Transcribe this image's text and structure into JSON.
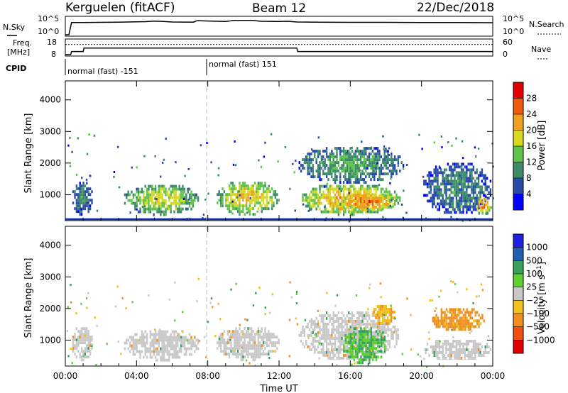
{
  "header": {
    "station": "Kerguelen (fitACF)",
    "beam": "Beam 12",
    "date": "22/Dec/2018"
  },
  "nsky_panel": {
    "left_label": "N.Sky",
    "right_label": "N.Search",
    "left_ticks": [
      "10^5",
      "10^0"
    ],
    "right_ticks": [
      "10^5",
      "10^0"
    ]
  },
  "freq_panel": {
    "left_label_line1": "Freq.",
    "left_label_line2": "[MHz]",
    "left_ticks": [
      "18",
      "8"
    ],
    "right_label": "Nave",
    "right_ticks": [
      "60",
      "0"
    ]
  },
  "cpid": {
    "label": "CPID",
    "segments": [
      {
        "text": "normal (fast) -151",
        "start_hour": 0
      },
      {
        "text": "normal (fast) 151",
        "start_hour": 8
      }
    ]
  },
  "colors": {
    "ground_scatter": "#c8c8c8",
    "power_scale": [
      "#0000ff",
      "#2a4aa8",
      "#3c8a6a",
      "#5fc24a",
      "#d8d820",
      "#f0a020",
      "#f05a10",
      "#e00000"
    ],
    "velocity_scale": [
      "#2020e0",
      "#2060b0",
      "#3aa060",
      "#60d030",
      "#c8c8c8",
      "#f0c020",
      "#f09020",
      "#f05010",
      "#e00000"
    ]
  },
  "chart_data": [
    {
      "type": "line",
      "panel": "noise",
      "x": [
        0,
        0.2,
        0.35,
        1,
        3,
        4.5,
        5.0,
        5.5,
        6,
        7.2,
        7.4,
        8,
        9,
        9.5,
        10.5,
        11,
        12,
        12.5,
        13,
        14,
        16,
        18,
        20,
        22,
        24
      ],
      "series": [
        {
          "name": "N.Sky",
          "values": [
            0.0,
            0.0,
            0.72,
            0.72,
            0.74,
            0.77,
            0.8,
            0.78,
            0.75,
            0.74,
            0.83,
            0.81,
            0.78,
            0.84,
            0.84,
            0.79,
            0.78,
            0.79,
            0.75,
            0.74,
            0.73,
            0.73,
            0.72,
            0.72,
            0.71
          ]
        }
      ],
      "ylim": [
        0,
        1
      ]
    },
    {
      "type": "line",
      "panel": "freq_nave",
      "x": [
        0,
        0.3,
        0.35,
        1.0,
        1.05,
        13.0,
        13.05,
        24
      ],
      "series": [
        {
          "name": "Freq.",
          "values": [
            8,
            8,
            10.2,
            10.2,
            12.6,
            12.6,
            10.2,
            10.2
          ]
        },
        {
          "name": "Nave",
          "values": [
            43,
            43,
            43,
            43,
            43,
            43,
            43,
            43
          ]
        }
      ],
      "ylim": [
        8,
        18
      ]
    },
    {
      "type": "heatmap",
      "panel": "power",
      "title": "",
      "xlabel": "",
      "ylabel": "Slant Range [km]",
      "colorbar_label": "Power [dB]",
      "colorbar_ticks": [
        "28",
        "24",
        "20",
        "16",
        "12",
        "8",
        "4"
      ],
      "x_ticks": [
        "00:00",
        "04:00",
        "08:00",
        "12:00",
        "16:00",
        "20:00",
        "00:00"
      ],
      "y_ticks": [
        "1000",
        "2000",
        "3000",
        "4000"
      ],
      "xlim": [
        0,
        24
      ],
      "ylim": [
        180,
        4600
      ],
      "regions": [
        {
          "x": [
            0.3,
            1.5
          ],
          "y": [
            400,
            1500
          ],
          "power": 12
        },
        {
          "x": [
            3.2,
            7.5
          ],
          "y": [
            400,
            1400
          ],
          "power": 20
        },
        {
          "x": [
            8.4,
            12.0
          ],
          "y": [
            400,
            1500
          ],
          "power": 22
        },
        {
          "x": [
            13.0,
            18.8
          ],
          "y": [
            400,
            1400
          ],
          "power": 24
        },
        {
          "x": [
            13.0,
            19.0
          ],
          "y": [
            1400,
            2600
          ],
          "power": 14
        },
        {
          "x": [
            15.3,
            18.5
          ],
          "y": [
            500,
            1100
          ],
          "power": 28
        },
        {
          "x": [
            20.0,
            23.9
          ],
          "y": [
            400,
            2100
          ],
          "power": 12
        },
        {
          "x": [
            23.0,
            23.9
          ],
          "y": [
            400,
            1000
          ],
          "power": 26
        }
      ]
    },
    {
      "type": "heatmap",
      "panel": "velocity",
      "title": "",
      "xlabel": "Time UT",
      "ylabel": "Slant Range [km]",
      "colorbar_label": "Velocity [m s^-1]",
      "colorbar_ticks": [
        "1000",
        "500",
        "100",
        "25",
        "−25",
        "−100",
        "−500",
        "−1000"
      ],
      "x_ticks": [
        "00:00",
        "04:00",
        "08:00",
        "12:00",
        "16:00",
        "20:00",
        "00:00"
      ],
      "y_ticks": [
        "1000",
        "2000",
        "3000",
        "4000"
      ],
      "xlim": [
        0,
        24
      ],
      "ylim": [
        180,
        4600
      ],
      "regions": [
        {
          "x": [
            0.3,
            1.5
          ],
          "y": [
            400,
            1500
          ],
          "velocity": 0
        },
        {
          "x": [
            3.2,
            7.5
          ],
          "y": [
            400,
            1400
          ],
          "velocity": 0
        },
        {
          "x": [
            8.4,
            12.0
          ],
          "y": [
            400,
            1500
          ],
          "velocity": 0
        },
        {
          "x": [
            13.0,
            18.8
          ],
          "y": [
            400,
            2000
          ],
          "velocity": 0
        },
        {
          "x": [
            15.5,
            18.0
          ],
          "y": [
            300,
            1500
          ],
          "velocity": 100
        },
        {
          "x": [
            17.2,
            18.5
          ],
          "y": [
            1500,
            2200
          ],
          "velocity": -100
        },
        {
          "x": [
            20.5,
            23.5
          ],
          "y": [
            1300,
            2100
          ],
          "velocity": -150
        },
        {
          "x": [
            20.0,
            23.9
          ],
          "y": [
            400,
            1100
          ],
          "velocity": 0
        }
      ]
    }
  ]
}
